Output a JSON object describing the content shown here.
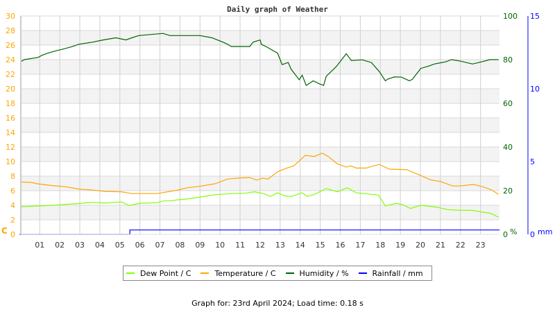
{
  "chart_data": {
    "type": "line",
    "title": "Daily graph of Weather",
    "x_ticks": [
      "01",
      "02",
      "03",
      "04",
      "05",
      "06",
      "07",
      "08",
      "09",
      "10",
      "11",
      "12",
      "13",
      "14",
      "15",
      "16",
      "17",
      "18",
      "19",
      "20",
      "21",
      "22",
      "23"
    ],
    "xlim": [
      0,
      24
    ],
    "grid": true,
    "legend_placement": "bottom",
    "axes": {
      "left": {
        "label": "C",
        "range": [
          0,
          30
        ],
        "ticks": [
          "0",
          "2",
          "4",
          "6",
          "8",
          "10",
          "12",
          "14",
          "16",
          "18",
          "20",
          "22",
          "24",
          "26",
          "28",
          "30"
        ],
        "color": "#ffa500"
      },
      "right_humidity": {
        "label": "%",
        "range": [
          0,
          100
        ],
        "ticks": [
          "0",
          "20",
          "40",
          "60",
          "80",
          "100"
        ],
        "color": "#006400"
      },
      "right_rain": {
        "label": "mm",
        "range": [
          0,
          15
        ],
        "ticks": [
          "0",
          "5",
          "10",
          "15"
        ],
        "color": "#0000ff"
      }
    },
    "series": [
      {
        "name": "Dew Point / C",
        "color": "#80ff00",
        "axis": "left",
        "x": [
          0.05,
          0.88,
          1.7,
          3.0,
          3.63,
          4.27,
          5.08,
          5.48,
          5.94,
          6.85,
          7.2,
          7.55,
          7.9,
          8.48,
          9.06,
          9.75,
          10.56,
          11.25,
          11.71,
          12.17,
          12.52,
          12.87,
          13.2,
          13.55,
          14.1,
          14.35,
          14.72,
          15.3,
          15.86,
          16.35,
          16.8,
          17.9,
          18.25,
          18.8,
          19.1,
          19.5,
          20.02,
          20.88,
          21.35,
          22.0,
          22.6,
          23.1,
          23.5,
          23.9
        ],
        "y": [
          3.8,
          3.9,
          4.0,
          4.25,
          4.4,
          4.3,
          4.45,
          3.95,
          4.25,
          4.35,
          4.6,
          4.6,
          4.75,
          4.9,
          5.15,
          5.45,
          5.6,
          5.65,
          5.85,
          5.6,
          5.2,
          5.7,
          5.3,
          5.2,
          5.7,
          5.2,
          5.5,
          6.3,
          5.85,
          6.4,
          5.7,
          5.4,
          3.9,
          4.25,
          4.1,
          3.55,
          4.0,
          3.7,
          3.4,
          3.3,
          3.3,
          3.05,
          2.9,
          2.35
        ]
      },
      {
        "name": "Temperature / C",
        "color": "#ffa500",
        "axis": "left",
        "x": [
          0.05,
          0.62,
          0.86,
          1.6,
          2.25,
          3.0,
          3.56,
          4.27,
          5.08,
          5.6,
          6.85,
          7.84,
          8.36,
          9.0,
          9.75,
          10.38,
          11.0,
          11.48,
          11.83,
          12.1,
          12.4,
          12.87,
          13.33,
          13.67,
          13.96,
          14.25,
          14.7,
          15.1,
          15.4,
          15.85,
          16.3,
          16.53,
          16.8,
          17.3,
          17.65,
          17.95,
          18.45,
          19.3,
          19.92,
          20.5,
          21.02,
          21.6,
          21.95,
          22.65,
          23.1,
          23.55,
          23.9
        ],
        "y": [
          7.2,
          7.1,
          6.95,
          6.7,
          6.55,
          6.2,
          6.1,
          5.9,
          5.85,
          5.6,
          5.6,
          6.05,
          6.4,
          6.6,
          6.95,
          7.6,
          7.75,
          7.8,
          7.45,
          7.7,
          7.6,
          8.6,
          9.1,
          9.4,
          10.1,
          10.85,
          10.7,
          11.15,
          10.7,
          9.7,
          9.25,
          9.4,
          9.1,
          9.1,
          9.4,
          9.6,
          8.95,
          8.9,
          8.2,
          7.5,
          7.25,
          6.65,
          6.65,
          6.85,
          6.55,
          6.1,
          5.5
        ]
      },
      {
        "name": "Humidity / %",
        "color": "#006400",
        "axis": "right_humidity",
        "x": [
          0.05,
          0.23,
          0.92,
          1.12,
          1.41,
          1.79,
          2.23,
          2.63,
          2.94,
          3.63,
          4.17,
          4.8,
          5.3,
          5.6,
          5.94,
          7.15,
          7.5,
          9.0,
          9.6,
          9.86,
          10.15,
          10.38,
          10.56,
          11.48,
          11.65,
          12.0,
          12.06,
          12.29,
          12.87,
          13.1,
          13.4,
          13.55,
          13.95,
          14.1,
          14.3,
          14.65,
          14.94,
          15.17,
          15.3,
          15.8,
          16.3,
          16.55,
          17.1,
          17.55,
          17.95,
          18.25,
          18.35,
          18.7,
          19.05,
          19.45,
          19.6,
          20.02,
          20.4,
          20.7,
          21.27,
          21.55,
          22.0,
          22.6,
          23.07,
          23.47,
          23.9
        ],
        "y": [
          79,
          80,
          81,
          82,
          83,
          84,
          85,
          86,
          87,
          88,
          89,
          90,
          89,
          90,
          91,
          92,
          91,
          91,
          90,
          89,
          88,
          87,
          86,
          86,
          88,
          89,
          87,
          86,
          83,
          77.7,
          78.7,
          75.6,
          70.8,
          72.9,
          68.2,
          70.3,
          69,
          68.2,
          72.4,
          76.8,
          82.7,
          79.6,
          79.9,
          78.7,
          74.5,
          70.3,
          71,
          72.1,
          72,
          70.3,
          71,
          76,
          77,
          78,
          79,
          80,
          79.3,
          78,
          79,
          80,
          80
        ]
      },
      {
        "name": "Rainfall / mm",
        "color": "#0000ff",
        "axis": "right_rain",
        "x": [
          0,
          5.5,
          5.5,
          23.95
        ],
        "y": [
          0,
          0,
          0.3,
          0.3
        ]
      }
    ]
  },
  "footer": "Graph for: 23rd April 2024; Load time: 0.18 s"
}
